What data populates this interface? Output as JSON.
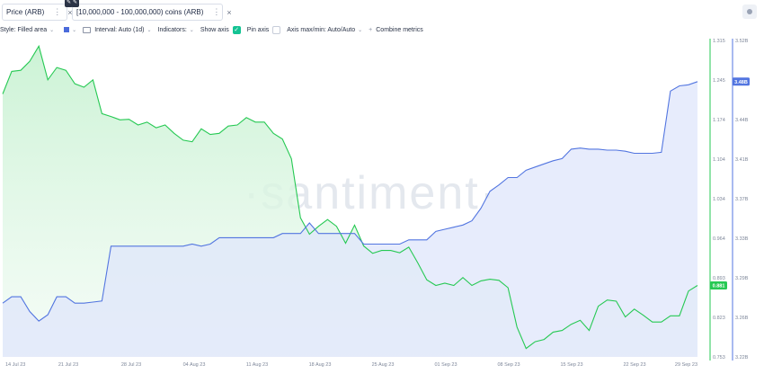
{
  "tabs": [
    {
      "label": "Price (ARB)",
      "color": "#26c953",
      "more": "⋮",
      "close": "×"
    },
    {
      "label": "[10,000,000 - 100,000,000) coins (ARB)",
      "color": "#5275e0",
      "more": "⋮",
      "close": "×"
    }
  ],
  "toolbar": {
    "style": "Style: Filled area",
    "interval": "Interval: Auto (1d)",
    "indicators": "Indicators:",
    "show_axis": "Show axis",
    "pin_axis": "Pin axis",
    "axis_maxmin": "Axis max/min: Auto/Auto",
    "combine": "Combine metrics",
    "check": "✓"
  },
  "watermark": "·santiment·",
  "chart_data": {
    "type": "area",
    "x_ticks": [
      "14 Jul 23",
      "21 Jul 23",
      "28 Jul 23",
      "04 Aug 23",
      "11 Aug 23",
      "18 Aug 23",
      "25 Aug 23",
      "01 Sep 23",
      "08 Sep 23",
      "15 Sep 23",
      "22 Sep 23",
      "29 Sep 23"
    ],
    "x_count": 78,
    "price_axis": {
      "ticks": [
        "1.315",
        "1.245",
        "1.174",
        "1.104",
        "1.034",
        "0.964",
        "0.893",
        "0.823",
        "0.753"
      ],
      "ylim": [
        0.753,
        1.315
      ],
      "current_label": "0.881"
    },
    "holdings_axis": {
      "ticks": [
        "3.52B",
        "3.48B",
        "3.44B",
        "3.41B",
        "3.37B",
        "3.33B",
        "3.29B",
        "3.26B",
        "3.22B"
      ],
      "ylim": [
        3.22,
        3.52
      ],
      "current_label": "3.48B"
    },
    "series": [
      {
        "name": "Price (ARB)",
        "color": "#26c953",
        "values": [
          1.22,
          1.26,
          1.262,
          1.278,
          1.305,
          1.245,
          1.267,
          1.262,
          1.238,
          1.232,
          1.245,
          1.185,
          1.18,
          1.174,
          1.175,
          1.165,
          1.17,
          1.16,
          1.165,
          1.15,
          1.138,
          1.135,
          1.158,
          1.148,
          1.15,
          1.163,
          1.165,
          1.178,
          1.17,
          1.17,
          1.15,
          1.14,
          1.105,
          1.0,
          0.971,
          0.985,
          0.997,
          0.985,
          0.955,
          0.987,
          0.95,
          0.937,
          0.942,
          0.942,
          0.938,
          0.948,
          0.92,
          0.89,
          0.88,
          0.884,
          0.88,
          0.894,
          0.88,
          0.888,
          0.891,
          0.889,
          0.876,
          0.806,
          0.768,
          0.78,
          0.784,
          0.797,
          0.8,
          0.811,
          0.818,
          0.8,
          0.843,
          0.854,
          0.852,
          0.824,
          0.838,
          0.827,
          0.815,
          0.815,
          0.826,
          0.826,
          0.87,
          0.88
        ]
      },
      {
        "name": "[10,000,000 - 100,000,000) coins (ARB)",
        "color": "#5275e0",
        "values": [
          3.271,
          3.277,
          3.277,
          3.263,
          3.254,
          3.26,
          3.277,
          3.277,
          3.271,
          3.271,
          3.272,
          3.273,
          3.325,
          3.325,
          3.325,
          3.325,
          3.325,
          3.325,
          3.325,
          3.325,
          3.325,
          3.327,
          3.325,
          3.327,
          3.333,
          3.333,
          3.333,
          3.333,
          3.333,
          3.333,
          3.333,
          3.337,
          3.337,
          3.337,
          3.347,
          3.337,
          3.337,
          3.337,
          3.337,
          3.337,
          3.327,
          3.327,
          3.327,
          3.327,
          3.327,
          3.331,
          3.331,
          3.331,
          3.339,
          3.341,
          3.343,
          3.345,
          3.349,
          3.361,
          3.377,
          3.383,
          3.39,
          3.39,
          3.397,
          3.4,
          3.403,
          3.406,
          3.408,
          3.417,
          3.418,
          3.417,
          3.417,
          3.416,
          3.416,
          3.415,
          3.413,
          3.413,
          3.413,
          3.414,
          3.472,
          3.477,
          3.478,
          3.481
        ]
      }
    ]
  }
}
